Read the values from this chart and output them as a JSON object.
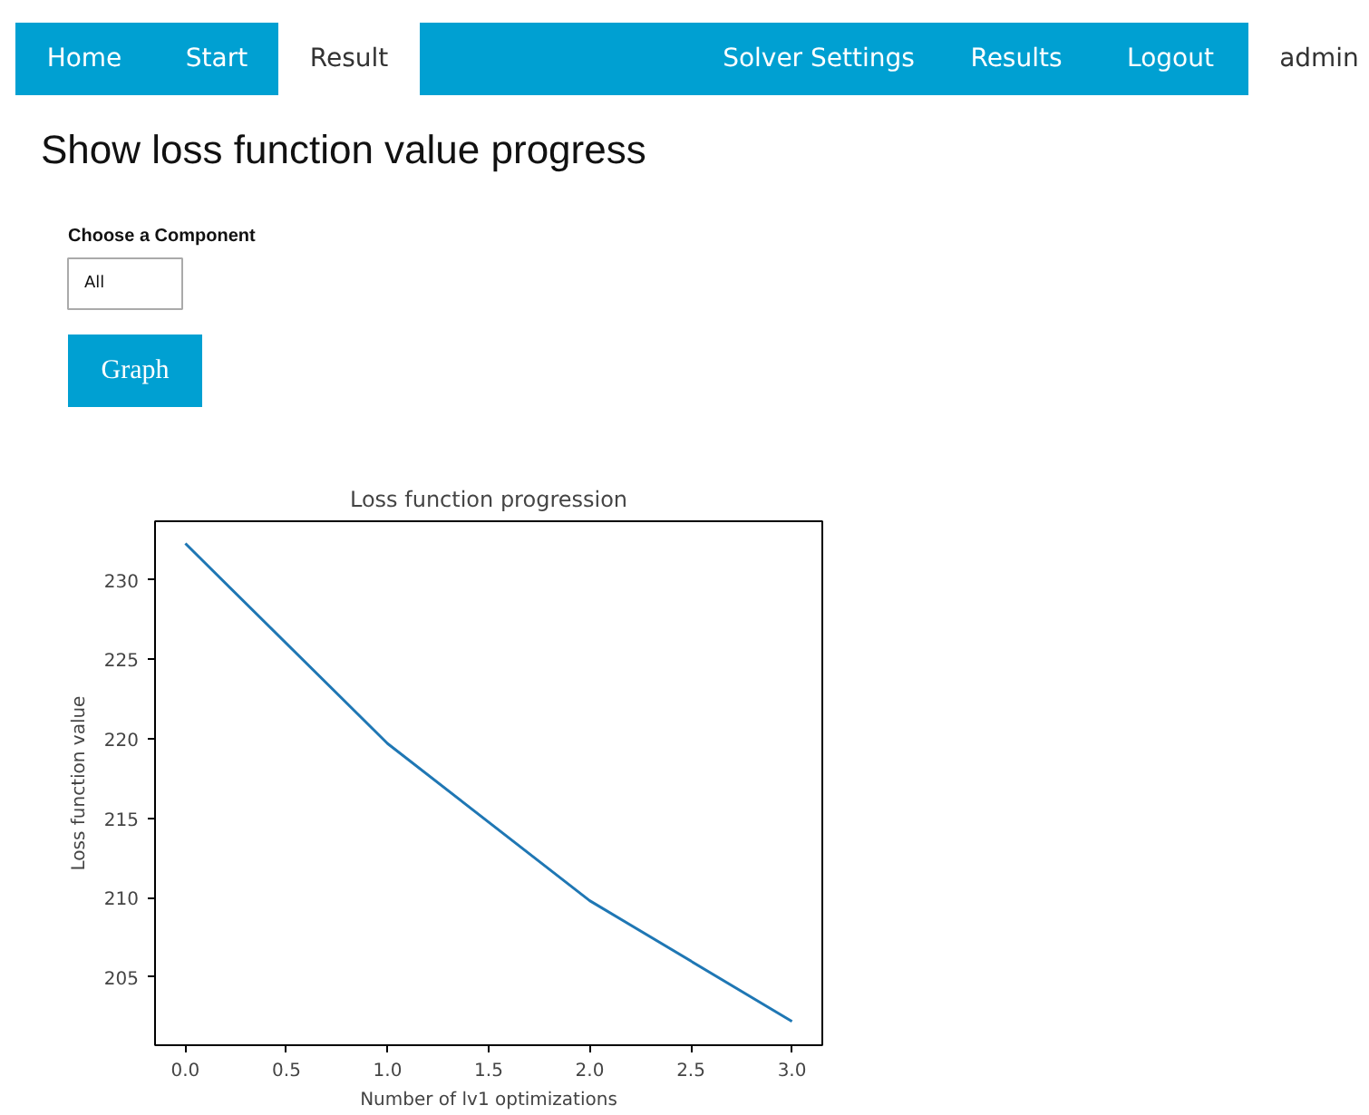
{
  "chart_data": [
    {
      "type": "other",
      "annotations": [
        "Home",
        "Start",
        "Result",
        "Solver Settings",
        "Results",
        "Logout",
        "admin",
        "Show loss function value progress",
        "Choose a Component",
        "All",
        "Graph"
      ]
    },
    {
      "type": "line",
      "title": "Loss function progression",
      "xlabel": "Number of lv1 optimizations",
      "ylabel": "Loss function value",
      "x": [
        0,
        1,
        2,
        3
      ],
      "series": [
        {
          "color": "#1f77b4",
          "values": [
            232.3,
            219.7,
            209.8,
            202.2
          ]
        }
      ],
      "xlim": [
        -0.15,
        3.15
      ],
      "ylim": [
        200.7,
        233.7
      ],
      "xticks": [
        {
          "value": 0,
          "label": "0.0"
        },
        {
          "value": 0.5,
          "label": "0.5"
        },
        {
          "value": 1,
          "label": "1.0"
        },
        {
          "value": 1.5,
          "label": "1.5"
        },
        {
          "value": 2,
          "label": "2.0"
        },
        {
          "value": 2.5,
          "label": "2.5"
        },
        {
          "value": 3,
          "label": "3.0"
        }
      ],
      "yticks": [
        205,
        210,
        215,
        220,
        225,
        230
      ],
      "grid": false
    }
  ]
}
